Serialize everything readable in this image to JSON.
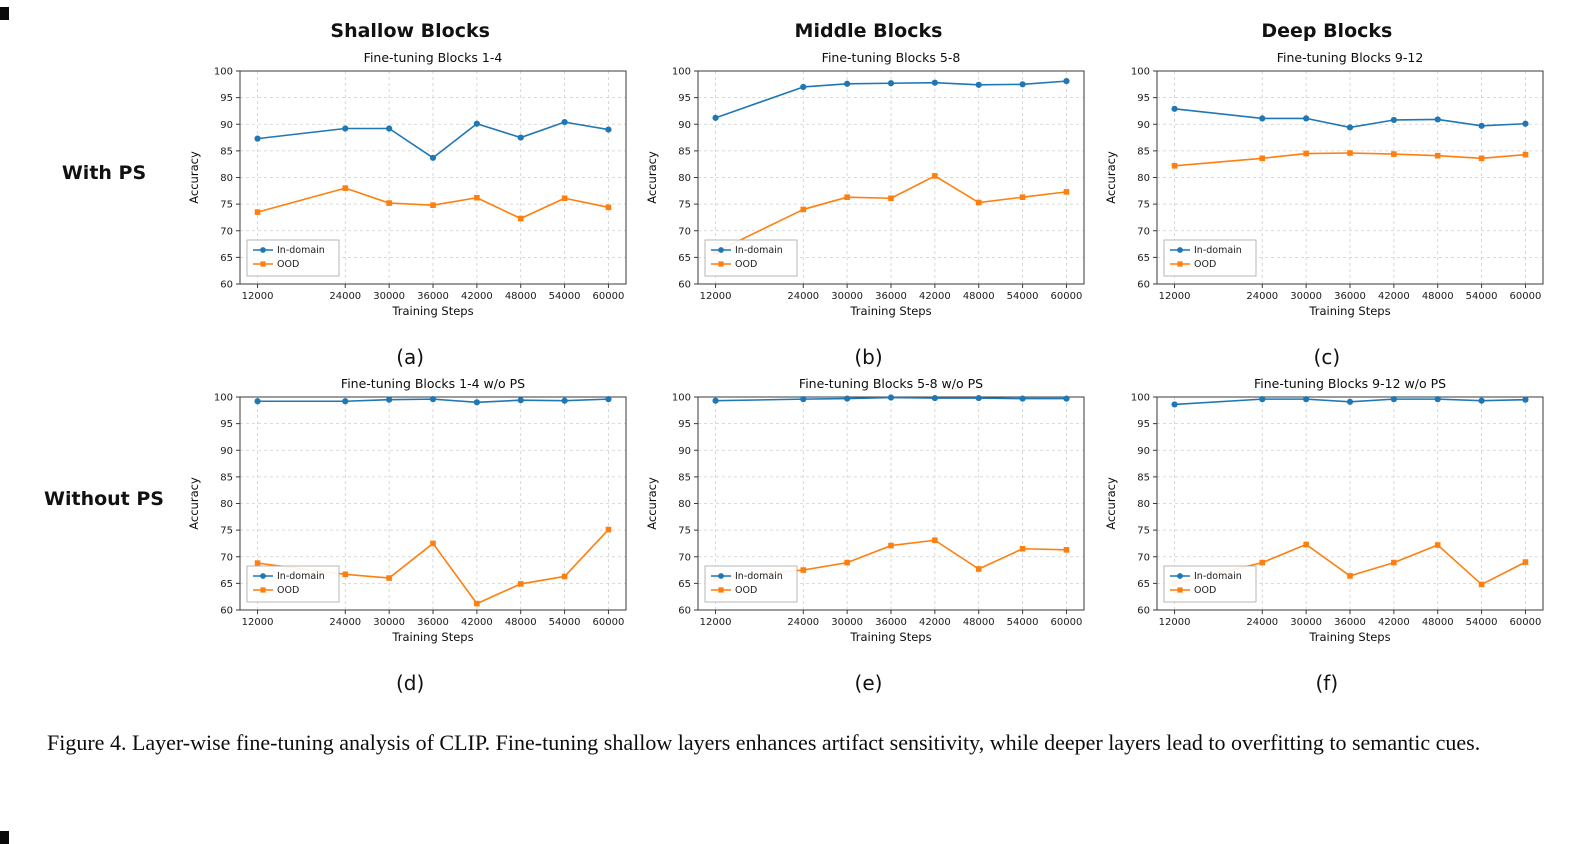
{
  "figure": {
    "column_headers": [
      "Shallow Blocks",
      "Middle Blocks",
      "Deep Blocks"
    ],
    "row_labels": [
      "With PS",
      "Without PS"
    ],
    "caption": "Figure 4.  Layer-wise fine-tuning analysis of CLIP. Fine-tuning shallow layers enhances artifact sensitivity, while deeper layers lead to overfitting to semantic cues."
  },
  "chart_style": {
    "in_domain_color": "#1f77b4",
    "ood_color": "#ff7f0e",
    "grid_color": "#cfcfcf",
    "frame_color": "#3a3a3a"
  },
  "chart_data": [
    {
      "type": "line",
      "id": "a",
      "panel_label": "(a)",
      "title": "Fine-tuning Blocks 1-4",
      "xlabel": "Training Steps",
      "ylabel": "Accuracy",
      "x": [
        12000,
        24000,
        30000,
        36000,
        42000,
        48000,
        54000,
        60000
      ],
      "xlim": [
        9600,
        62400
      ],
      "ylim": [
        60,
        100
      ],
      "yticks": [
        60,
        65,
        70,
        75,
        80,
        85,
        90,
        95,
        100
      ],
      "grid": true,
      "legend_position": "lower-left",
      "legend": [
        "In-domain",
        "OOD"
      ],
      "series": [
        {
          "name": "In-domain",
          "color": "#1f77b4",
          "marker": "circle",
          "values": [
            87.3,
            89.2,
            89.2,
            83.7,
            90.1,
            87.5,
            90.4,
            89.0
          ]
        },
        {
          "name": "OOD",
          "color": "#ff7f0e",
          "marker": "square",
          "values": [
            73.5,
            78.0,
            75.2,
            74.8,
            76.2,
            72.3,
            76.1,
            74.4
          ]
        }
      ]
    },
    {
      "type": "line",
      "id": "b",
      "panel_label": "(b)",
      "title": "Fine-tuning Blocks 5-8",
      "xlabel": "Training Steps",
      "ylabel": "Accuracy",
      "x": [
        12000,
        24000,
        30000,
        36000,
        42000,
        48000,
        54000,
        60000
      ],
      "xlim": [
        9600,
        62400
      ],
      "ylim": [
        60,
        100
      ],
      "yticks": [
        60,
        65,
        70,
        75,
        80,
        85,
        90,
        95,
        100
      ],
      "grid": true,
      "legend_position": "lower-left",
      "legend": [
        "In-domain",
        "OOD"
      ],
      "series": [
        {
          "name": "In-domain",
          "color": "#1f77b4",
          "marker": "circle",
          "values": [
            91.2,
            97.0,
            97.6,
            97.7,
            97.8,
            97.4,
            97.5,
            98.1
          ]
        },
        {
          "name": "OOD",
          "color": "#ff7f0e",
          "marker": "square",
          "values": [
            66.0,
            74.0,
            76.3,
            76.1,
            80.3,
            75.3,
            76.3,
            77.3
          ]
        }
      ]
    },
    {
      "type": "line",
      "id": "c",
      "panel_label": "(c)",
      "title": "Fine-tuning Blocks 9-12",
      "xlabel": "Training Steps",
      "ylabel": "Accuracy",
      "x": [
        12000,
        24000,
        30000,
        36000,
        42000,
        48000,
        54000,
        60000
      ],
      "xlim": [
        9600,
        62400
      ],
      "ylim": [
        60,
        100
      ],
      "yticks": [
        60,
        65,
        70,
        75,
        80,
        85,
        90,
        95,
        100
      ],
      "grid": true,
      "legend_position": "lower-left",
      "legend": [
        "In-domain",
        "OOD"
      ],
      "series": [
        {
          "name": "In-domain",
          "color": "#1f77b4",
          "marker": "circle",
          "values": [
            92.9,
            91.1,
            91.1,
            89.4,
            90.8,
            90.9,
            89.7,
            90.1
          ]
        },
        {
          "name": "OOD",
          "color": "#ff7f0e",
          "marker": "square",
          "values": [
            82.2,
            83.6,
            84.5,
            84.6,
            84.4,
            84.1,
            83.6,
            84.3
          ]
        }
      ]
    },
    {
      "type": "line",
      "id": "d",
      "panel_label": "(d)",
      "title": "Fine-tuning Blocks 1-4 w/o PS",
      "xlabel": "Training Steps",
      "ylabel": "Accuracy",
      "x": [
        12000,
        24000,
        30000,
        36000,
        42000,
        48000,
        54000,
        60000
      ],
      "xlim": [
        9600,
        62400
      ],
      "ylim": [
        60,
        100
      ],
      "yticks": [
        60,
        65,
        70,
        75,
        80,
        85,
        90,
        95,
        100
      ],
      "grid": true,
      "legend_position": "lower-left",
      "legend": [
        "In-domain",
        "OOD"
      ],
      "series": [
        {
          "name": "In-domain",
          "color": "#1f77b4",
          "marker": "circle",
          "values": [
            99.2,
            99.2,
            99.5,
            99.6,
            99.0,
            99.4,
            99.3,
            99.6
          ]
        },
        {
          "name": "OOD",
          "color": "#ff7f0e",
          "marker": "square",
          "values": [
            68.8,
            66.7,
            66.0,
            72.5,
            61.2,
            64.9,
            66.3,
            75.1
          ]
        }
      ]
    },
    {
      "type": "line",
      "id": "e",
      "panel_label": "(e)",
      "title": "Fine-tuning Blocks 5-8 w/o PS",
      "xlabel": "Training Steps",
      "ylabel": "Accuracy",
      "x": [
        12000,
        24000,
        30000,
        36000,
        42000,
        48000,
        54000,
        60000
      ],
      "xlim": [
        9600,
        62400
      ],
      "ylim": [
        60,
        100
      ],
      "yticks": [
        60,
        65,
        70,
        75,
        80,
        85,
        90,
        95,
        100
      ],
      "grid": true,
      "legend_position": "lower-left",
      "legend": [
        "In-domain",
        "OOD"
      ],
      "series": [
        {
          "name": "In-domain",
          "color": "#1f77b4",
          "marker": "circle",
          "values": [
            99.3,
            99.6,
            99.7,
            99.9,
            99.8,
            99.8,
            99.7,
            99.7
          ]
        },
        {
          "name": "OOD",
          "color": "#ff7f0e",
          "marker": "square",
          "values": [
            66.0,
            67.5,
            68.9,
            72.1,
            73.1,
            67.7,
            71.5,
            71.3
          ]
        }
      ]
    },
    {
      "type": "line",
      "id": "f",
      "panel_label": "(f)",
      "title": "Fine-tuning Blocks 9-12 w/o PS",
      "xlabel": "Training Steps",
      "ylabel": "Accuracy",
      "x": [
        12000,
        24000,
        30000,
        36000,
        42000,
        48000,
        54000,
        60000
      ],
      "xlim": [
        9600,
        62400
      ],
      "ylim": [
        60,
        100
      ],
      "yticks": [
        60,
        65,
        70,
        75,
        80,
        85,
        90,
        95,
        100
      ],
      "grid": true,
      "legend_position": "lower-left",
      "legend": [
        "In-domain",
        "OOD"
      ],
      "series": [
        {
          "name": "In-domain",
          "color": "#1f77b4",
          "marker": "circle",
          "values": [
            98.6,
            99.6,
            99.6,
            99.1,
            99.6,
            99.6,
            99.3,
            99.5
          ]
        },
        {
          "name": "OOD",
          "color": "#ff7f0e",
          "marker": "square",
          "values": [
            65.0,
            68.9,
            72.3,
            66.4,
            68.9,
            72.2,
            64.8,
            69.0
          ]
        }
      ]
    }
  ]
}
